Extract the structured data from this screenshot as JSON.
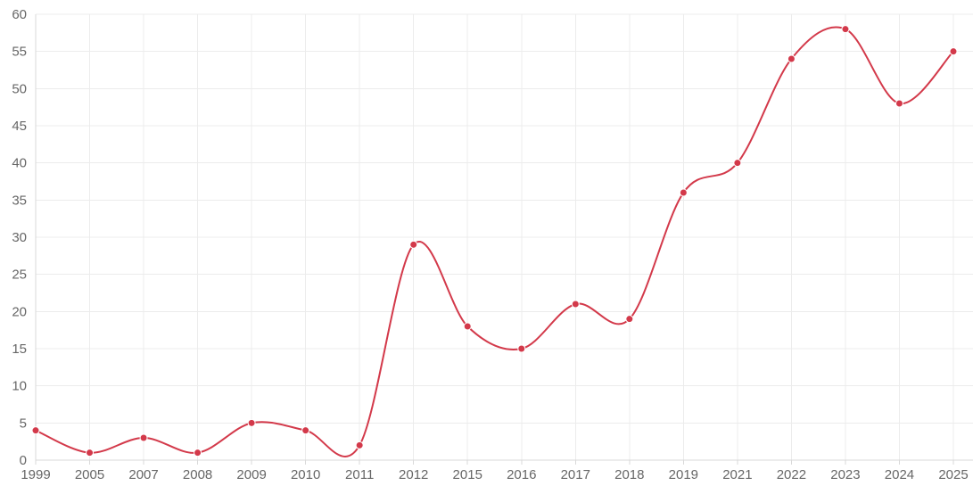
{
  "chart_data": {
    "type": "line",
    "title": "",
    "xlabel": "",
    "ylabel": "",
    "categories": [
      "1999",
      "2005",
      "2007",
      "2008",
      "2009",
      "2010",
      "2011",
      "2012",
      "2015",
      "2016",
      "2017",
      "2018",
      "2019",
      "2021",
      "2022",
      "2023",
      "2024",
      "2025"
    ],
    "series": [
      {
        "values": [
          4,
          1,
          3,
          1,
          5,
          4,
          2,
          29,
          18,
          15,
          21,
          19,
          36,
          40,
          54,
          58,
          48,
          55
        ],
        "color": "#d3394a",
        "smooth": true,
        "markers": true
      }
    ],
    "y_ticks": [
      "0",
      "5",
      "10",
      "15",
      "20",
      "25",
      "30",
      "35",
      "40",
      "45",
      "50",
      "55",
      "60"
    ],
    "ylim": [
      0,
      60
    ],
    "grid": true,
    "legend": "none"
  }
}
